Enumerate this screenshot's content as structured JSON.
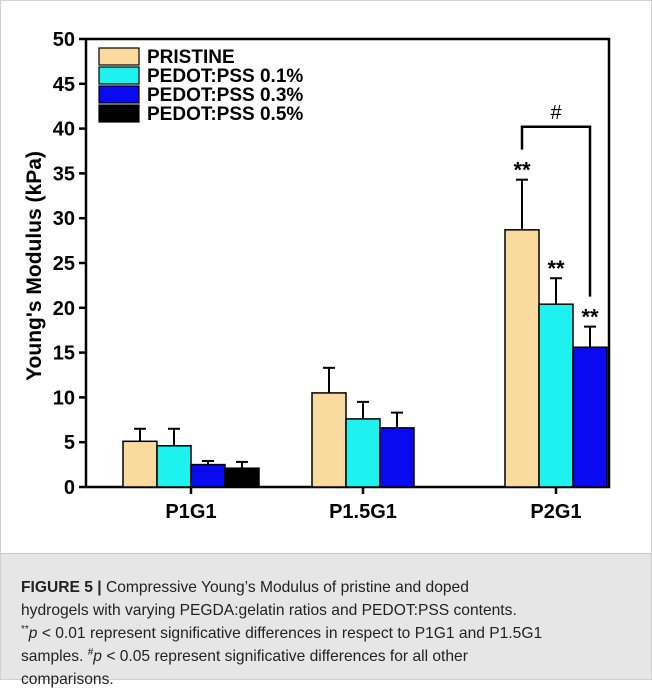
{
  "chart_data": {
    "type": "bar",
    "ylabel": "Young's Modulus (kPa)",
    "xlabel": "",
    "ylim": [
      0,
      50
    ],
    "yticks": [
      "0",
      "5",
      "10",
      "15",
      "20",
      "25",
      "30",
      "35",
      "40",
      "45",
      "50"
    ],
    "categories": [
      "P1G1",
      "P1.5G1",
      "P2G1"
    ],
    "legend_position": "top-left",
    "grid": false,
    "series": [
      {
        "name": "PRISTINE",
        "color": "#f9dba0",
        "values": [
          5.1,
          10.5,
          28.7
        ],
        "errors": [
          1.4,
          2.8,
          5.6
        ]
      },
      {
        "name": "PEDOT:PSS 0.1%",
        "color": "#1ef2ee",
        "values": [
          4.6,
          7.6,
          20.4
        ],
        "errors": [
          1.9,
          1.9,
          2.9
        ]
      },
      {
        "name": "PEDOT:PSS 0.3%",
        "color": "#0a0af0",
        "values": [
          2.5,
          6.6,
          15.6
        ],
        "errors": [
          0.4,
          1.7,
          2.3
        ]
      },
      {
        "name": "PEDOT:PSS 0.5%",
        "color": "#000000",
        "values": [
          2.1,
          null,
          null
        ],
        "errors": [
          0.7,
          null,
          null
        ]
      }
    ],
    "annotations": [
      {
        "text": "**",
        "category": "P2G1",
        "series": "PRISTINE"
      },
      {
        "text": "**",
        "category": "P2G1",
        "series": "PEDOT:PSS 0.1%"
      },
      {
        "text": "**",
        "category": "P2G1",
        "series": "PEDOT:PSS 0.3%"
      },
      {
        "text": "#",
        "category": "P2G1",
        "between": [
          "PRISTINE",
          "PEDOT:PSS 0.3%"
        ]
      }
    ]
  },
  "caption": {
    "label": "FIGURE 5 |",
    "line1": " Compressive Young’s Modulus of pristine and doped",
    "line2": "hydrogels with varying PEGDA:gelatin ratios and PEDOT:PSS contents.",
    "l3_stars": "**",
    "l3_p": "p",
    "l3_rest": " < 0.01 represent significative differences in respect to P1G1 and P1.5G1",
    "line4": "samples. ",
    "l5_hash": "#",
    "l5_p": "p",
    "l5_rest": " < 0.05 represent significative differences for all other",
    "line6": "comparisons."
  }
}
